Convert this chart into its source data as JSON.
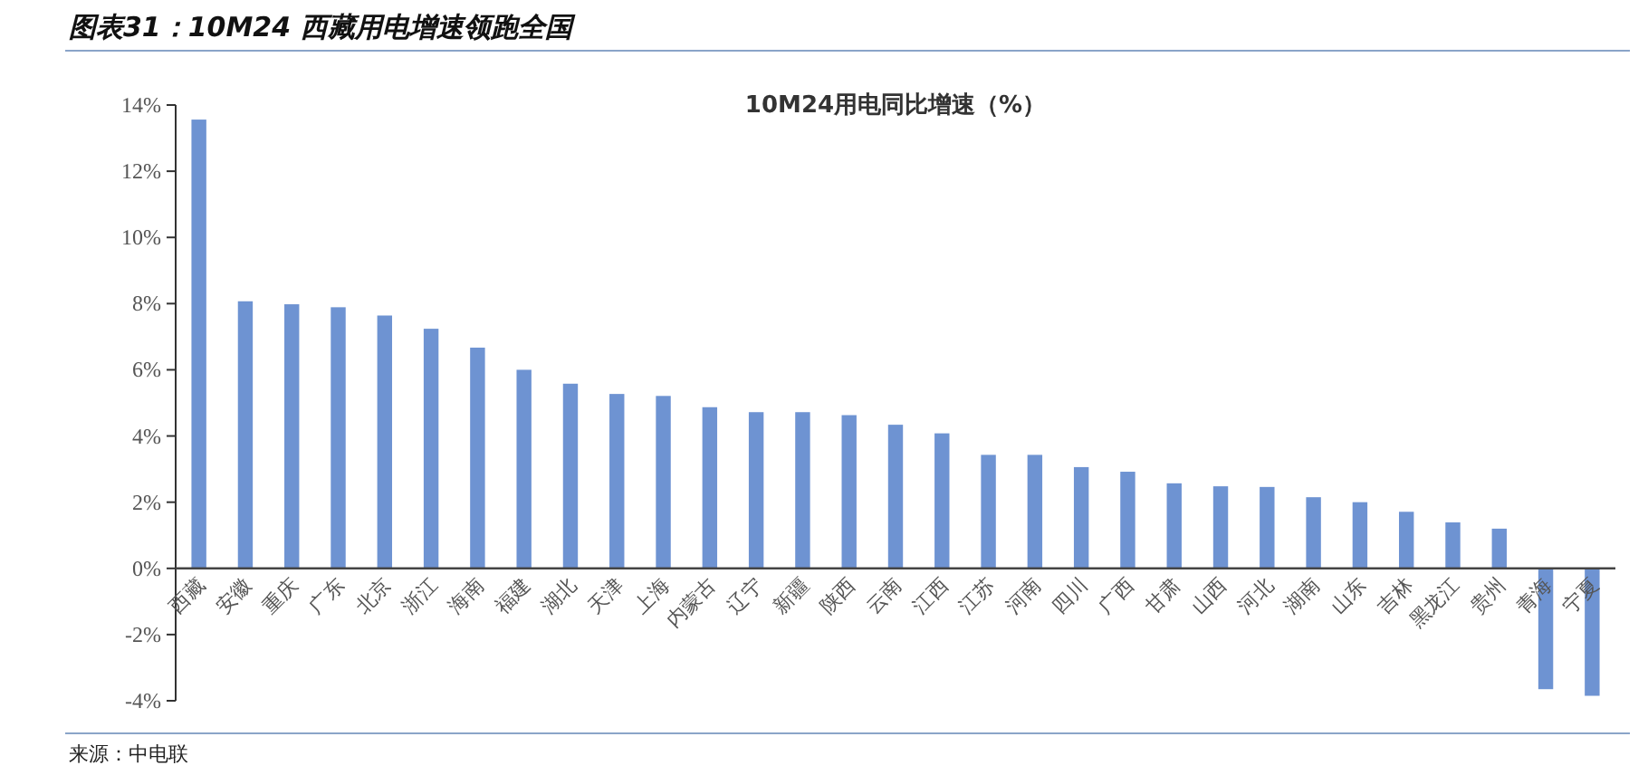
{
  "chart_data": {
    "type": "bar",
    "title": "图表31：10M24 西藏用电增速领跑全国",
    "subtitle": "10M24用电同比增速（%）",
    "categories": [
      "西藏",
      "安徽",
      "重庆",
      "广东",
      "北京",
      "浙江",
      "海南",
      "福建",
      "湖北",
      "天津",
      "上海",
      "内蒙古",
      "辽宁",
      "新疆",
      "陕西",
      "云南",
      "江西",
      "江苏",
      "河南",
      "四川",
      "广西",
      "甘肃",
      "山西",
      "河北",
      "湖南",
      "山东",
      "吉林",
      "黑龙江",
      "贵州",
      "青海",
      "宁夏"
    ],
    "values": [
      13.56,
      8.07,
      7.98,
      7.89,
      7.64,
      7.24,
      6.67,
      6.0,
      5.58,
      5.27,
      5.21,
      4.87,
      4.72,
      4.72,
      4.63,
      4.34,
      4.08,
      3.43,
      3.43,
      3.06,
      2.92,
      2.57,
      2.48,
      2.46,
      2.15,
      2.0,
      1.71,
      1.39,
      1.2,
      -3.65,
      -3.85
    ],
    "color": "#6e93d2",
    "ylim": [
      -4,
      14
    ],
    "yticks": [
      {
        "value": -4,
        "label": "-4%"
      },
      {
        "value": -2,
        "label": "-2%"
      },
      {
        "value": 0,
        "label": "0%"
      },
      {
        "value": 2,
        "label": "2%"
      },
      {
        "value": 4,
        "label": "4%"
      },
      {
        "value": 6,
        "label": "6%"
      },
      {
        "value": 8,
        "label": "8%"
      },
      {
        "value": 10,
        "label": "10%"
      },
      {
        "value": 12,
        "label": "12%"
      },
      {
        "value": 14,
        "label": "14%"
      }
    ],
    "annotations": [
      "来源：中电联"
    ]
  }
}
